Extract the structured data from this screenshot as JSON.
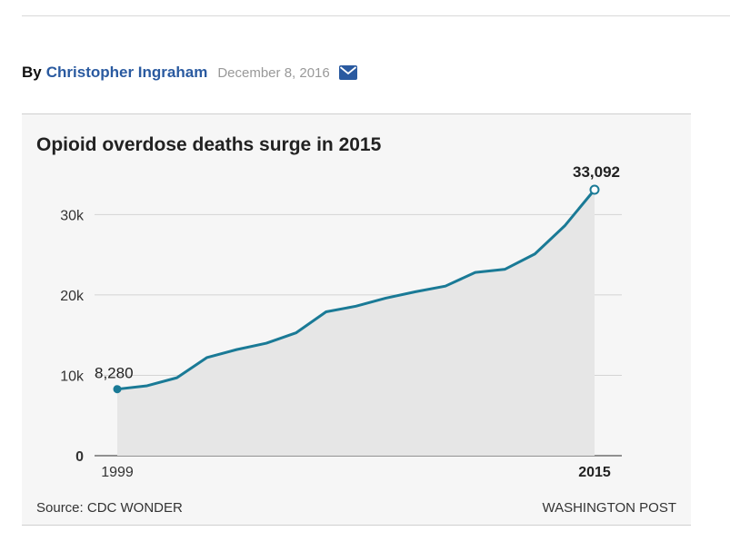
{
  "byline": {
    "by": "By",
    "author": "Christopher Ingraham",
    "date": "December 8, 2016",
    "mail_icon": "envelope-icon"
  },
  "colors": {
    "accent": "#1a7a96",
    "area_fill": "#e6e6e6",
    "author_link": "#2a5aa0"
  },
  "chart_data": {
    "type": "area",
    "title": "Opioid overdose deaths surge in 2015",
    "x": [
      1999,
      2000,
      2001,
      2002,
      2003,
      2004,
      2005,
      2006,
      2007,
      2008,
      2009,
      2010,
      2011,
      2012,
      2013,
      2014,
      2015
    ],
    "series": [
      {
        "values": [
          8280,
          8700,
          9700,
          12200,
          13200,
          14000,
          15300,
          17900,
          18600,
          19600,
          20400,
          21100,
          22800,
          23200,
          25100,
          28600,
          33092
        ]
      }
    ],
    "x_tick_labels": [
      "1999",
      "2015"
    ],
    "y_ticks": [
      0,
      10000,
      20000,
      30000
    ],
    "y_tick_labels": [
      "0",
      "10k",
      "20k",
      "30k"
    ],
    "ylim": [
      0,
      33092
    ],
    "grid": true,
    "annotations": [
      {
        "x": 1999,
        "label": "8,280"
      },
      {
        "x": 2015,
        "label": "33,092"
      }
    ]
  },
  "footer": {
    "source": "Source: CDC WONDER",
    "credit": "WASHINGTON POST"
  }
}
